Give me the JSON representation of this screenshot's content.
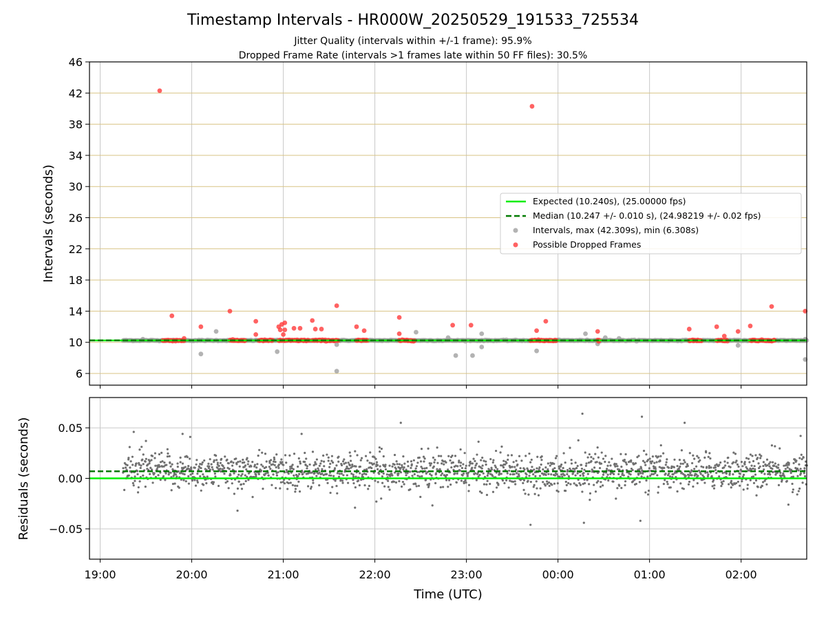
{
  "chart_data": {
    "type": "scatter",
    "title": "Timestamp Intervals - HR000W_20250529_191533_725534",
    "subtitle_lines": [
      "Jitter Quality (intervals within +/-1 frame): 95.9%",
      "Dropped Frame Rate (intervals >1 frames late within 50 FF files): 30.5%"
    ],
    "xlabel": "Time (UTC)",
    "x_axis": {
      "type": "time",
      "start": "2025-05-29T18:53",
      "end": "2025-05-30T02:43",
      "ticks": [
        {
          "time": "2025-05-29T19:00",
          "label": "19:00"
        },
        {
          "time": "2025-05-29T20:00",
          "label": "20:00"
        },
        {
          "time": "2025-05-29T21:00",
          "label": "21:00"
        },
        {
          "time": "2025-05-29T22:00",
          "label": "22:00"
        },
        {
          "time": "2025-05-29T23:00",
          "label": "23:00"
        },
        {
          "time": "2025-05-30T00:00",
          "label": "00:00"
        },
        {
          "time": "2025-05-30T01:00",
          "label": "01:00"
        },
        {
          "time": "2025-05-30T02:00",
          "label": "02:00"
        }
      ]
    },
    "top_panel": {
      "ylabel": "Intervals (seconds)",
      "ylim": [
        4.5,
        46
      ],
      "yticks": [
        6,
        10,
        14,
        18,
        22,
        26,
        30,
        34,
        38,
        42,
        46
      ],
      "grid": true,
      "gold_gridlines_at": [
        10,
        14,
        18,
        22,
        26,
        30,
        34,
        38,
        42
      ],
      "expected_line": 10.24,
      "median_line": 10.247,
      "legend_placement": "center-right",
      "legend": [
        {
          "label": "Expected (10.240s), (25.00000 fps)",
          "style": "solid-line",
          "color": "#00ee00"
        },
        {
          "label": "Median (10.247 +/- 0.010 s), (24.98219 +/- 0.02 fps)",
          "style": "dashed-line",
          "color": "#007a00"
        },
        {
          "label": "Intervals, max (42.309s), min (6.308s)",
          "style": "marker",
          "color": "#9a9a9a"
        },
        {
          "label": "Possible Dropped Frames",
          "style": "marker",
          "color": "#ff3b3b"
        }
      ],
      "gray_points": [
        {
          "t": "2025-05-29T20:06",
          "y": 8.5
        },
        {
          "t": "2025-05-29T20:16",
          "y": 11.4
        },
        {
          "t": "2025-05-29T20:56",
          "y": 8.8
        },
        {
          "t": "2025-05-29T21:35",
          "y": 6.3
        },
        {
          "t": "2025-05-29T21:35",
          "y": 9.7
        },
        {
          "t": "2025-05-29T22:27",
          "y": 11.3
        },
        {
          "t": "2025-05-29T22:48",
          "y": 10.6
        },
        {
          "t": "2025-05-29T22:53",
          "y": 8.3
        },
        {
          "t": "2025-05-29T23:04",
          "y": 8.3
        },
        {
          "t": "2025-05-29T23:10",
          "y": 11.1
        },
        {
          "t": "2025-05-29T23:10",
          "y": 9.4
        },
        {
          "t": "2025-05-29T23:46",
          "y": 8.9
        },
        {
          "t": "2025-05-30T00:18",
          "y": 11.1
        },
        {
          "t": "2025-05-30T00:26",
          "y": 9.8
        },
        {
          "t": "2025-05-30T00:31",
          "y": 10.6
        },
        {
          "t": "2025-05-30T00:40",
          "y": 10.5
        },
        {
          "t": "2025-05-30T01:58",
          "y": 9.6
        },
        {
          "t": "2025-05-30T02:42",
          "y": 7.8
        },
        {
          "t": "2025-05-30T02:42",
          "y": 10.4
        },
        {
          "t": "2025-05-29T19:28",
          "y": 10.4
        }
      ],
      "gray_point_range": {
        "start": "2025-05-29T19:15",
        "end": "2025-05-30T02:43",
        "y": 10.24
      },
      "red_bands": [
        {
          "start": "2025-05-29T19:41",
          "end": "2025-05-29T19:55"
        },
        {
          "start": "2025-05-29T20:25",
          "end": "2025-05-29T20:35"
        },
        {
          "start": "2025-05-29T20:44",
          "end": "2025-05-29T20:53"
        },
        {
          "start": "2025-05-29T20:57",
          "end": "2025-05-29T21:17"
        },
        {
          "start": "2025-05-29T21:19",
          "end": "2025-05-29T21:36"
        },
        {
          "start": "2025-05-29T21:48",
          "end": "2025-05-29T21:55"
        },
        {
          "start": "2025-05-29T22:16",
          "end": "2025-05-29T22:26"
        },
        {
          "start": "2025-05-29T23:42",
          "end": "2025-05-29T23:59"
        },
        {
          "start": "2025-05-30T00:26",
          "end": "2025-05-30T00:27"
        },
        {
          "start": "2025-05-30T01:26",
          "end": "2025-05-30T01:34"
        },
        {
          "start": "2025-05-30T01:44",
          "end": "2025-05-30T01:51"
        },
        {
          "start": "2025-05-30T02:06",
          "end": "2025-05-30T02:22"
        }
      ],
      "red_points": [
        {
          "t": "2025-05-29T19:39",
          "y": 42.3
        },
        {
          "t": "2025-05-29T19:47",
          "y": 13.4
        },
        {
          "t": "2025-05-29T19:55",
          "y": 10.5
        },
        {
          "t": "2025-05-29T20:06",
          "y": 12.0
        },
        {
          "t": "2025-05-29T20:25",
          "y": 14.0
        },
        {
          "t": "2025-05-29T20:42",
          "y": 12.7
        },
        {
          "t": "2025-05-29T20:42",
          "y": 11.0
        },
        {
          "t": "2025-05-29T20:57",
          "y": 12.0
        },
        {
          "t": "2025-05-29T20:58",
          "y": 11.6
        },
        {
          "t": "2025-05-29T20:59",
          "y": 12.3
        },
        {
          "t": "2025-05-29T21:00",
          "y": 11.0
        },
        {
          "t": "2025-05-29T21:01",
          "y": 11.6
        },
        {
          "t": "2025-05-29T21:01",
          "y": 12.5
        },
        {
          "t": "2025-05-29T21:07",
          "y": 11.8
        },
        {
          "t": "2025-05-29T21:11",
          "y": 11.8
        },
        {
          "t": "2025-05-29T21:19",
          "y": 12.8
        },
        {
          "t": "2025-05-29T21:21",
          "y": 11.7
        },
        {
          "t": "2025-05-29T21:25",
          "y": 11.7
        },
        {
          "t": "2025-05-29T21:35",
          "y": 14.7
        },
        {
          "t": "2025-05-29T21:48",
          "y": 12.0
        },
        {
          "t": "2025-05-29T21:53",
          "y": 11.5
        },
        {
          "t": "2025-05-29T22:16",
          "y": 13.2
        },
        {
          "t": "2025-05-29T22:16",
          "y": 11.1
        },
        {
          "t": "2025-05-29T22:51",
          "y": 12.2
        },
        {
          "t": "2025-05-29T23:03",
          "y": 12.2
        },
        {
          "t": "2025-05-29T23:43",
          "y": 40.3
        },
        {
          "t": "2025-05-29T23:46",
          "y": 11.5
        },
        {
          "t": "2025-05-29T23:52",
          "y": 12.7
        },
        {
          "t": "2025-05-30T00:26",
          "y": 11.4
        },
        {
          "t": "2025-05-30T01:26",
          "y": 11.7
        },
        {
          "t": "2025-05-30T01:44",
          "y": 12.0
        },
        {
          "t": "2025-05-30T01:49",
          "y": 10.8
        },
        {
          "t": "2025-05-30T01:58",
          "y": 11.4
        },
        {
          "t": "2025-05-30T02:06",
          "y": 12.1
        },
        {
          "t": "2025-05-30T02:20",
          "y": 14.6
        },
        {
          "t": "2025-05-30T02:42",
          "y": 14.0
        }
      ]
    },
    "bottom_panel": {
      "ylabel": "Residuals (seconds)",
      "ylim": [
        -0.08,
        0.08
      ],
      "yticks": [
        {
          "value": 0.05,
          "label": "0.05"
        },
        {
          "value": 0.0,
          "label": "0.00"
        },
        {
          "value": -0.05,
          "label": "−0.05"
        }
      ],
      "grid": true,
      "expected_line": 0.0,
      "median_line": 0.007,
      "residual_distribution": {
        "center": 0.007,
        "spread": 0.009
      },
      "outliers": [
        {
          "t": "2025-05-29T19:22",
          "y": 0.046
        },
        {
          "t": "2025-05-29T19:30",
          "y": 0.037
        },
        {
          "t": "2025-05-29T19:54",
          "y": 0.044
        },
        {
          "t": "2025-05-29T19:59",
          "y": 0.041
        },
        {
          "t": "2025-05-29T20:30",
          "y": -0.032
        },
        {
          "t": "2025-05-29T21:12",
          "y": 0.044
        },
        {
          "t": "2025-05-29T21:47",
          "y": -0.029
        },
        {
          "t": "2025-05-29T22:01",
          "y": -0.023
        },
        {
          "t": "2025-05-29T22:17",
          "y": 0.055
        },
        {
          "t": "2025-05-29T23:42",
          "y": -0.046
        },
        {
          "t": "2025-05-30T00:16",
          "y": 0.064
        },
        {
          "t": "2025-05-30T00:17",
          "y": -0.044
        },
        {
          "t": "2025-05-30T00:55",
          "y": 0.061
        },
        {
          "t": "2025-05-30T00:54",
          "y": -0.042
        },
        {
          "t": "2025-05-30T01:23",
          "y": 0.055
        },
        {
          "t": "2025-05-30T02:31",
          "y": -0.026
        },
        {
          "t": "2025-05-30T02:39",
          "y": 0.042
        }
      ]
    }
  }
}
